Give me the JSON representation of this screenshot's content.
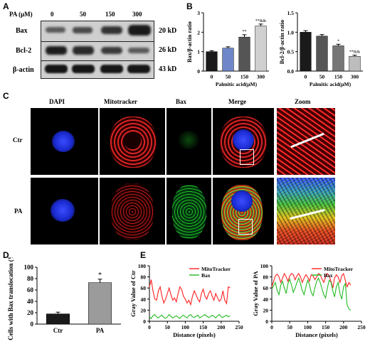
{
  "panel_letters": {
    "a": "A",
    "b": "B",
    "c": "C",
    "d": "D",
    "e": "E"
  },
  "panelA": {
    "header_label": "PA (μM)",
    "concentrations": [
      "0",
      "50",
      "150",
      "300"
    ],
    "rows": [
      {
        "name": "Bax",
        "size": "20 kD"
      },
      {
        "name": "Bcl-2",
        "size": "26 kD"
      },
      {
        "name": "β-actin",
        "size": "43 kD"
      }
    ]
  },
  "panelC": {
    "columns": [
      "DAPI",
      "Mitotracker",
      "Bax",
      "Merge",
      "Zoom"
    ],
    "rows": [
      "Ctr",
      "PA"
    ]
  },
  "chart_data": [
    {
      "id": "B-left",
      "type": "bar",
      "categories": [
        "0",
        "50",
        "150",
        "300"
      ],
      "values": [
        1.0,
        1.18,
        1.75,
        2.32
      ],
      "errors": [
        0.05,
        0.07,
        0.12,
        0.1
      ],
      "colors": [
        "#1a1a1a",
        "#6f87c8",
        "#555555",
        "#d0d0d0"
      ],
      "annotations": [
        "",
        "",
        "**",
        "**&&"
      ],
      "ylabel": "Bax/β-actin ratio",
      "xlabel": "Palmitic acid(μM)",
      "ylim": [
        0,
        3
      ],
      "yticks": [
        "0",
        "1",
        "2",
        "3"
      ]
    },
    {
      "id": "B-right",
      "type": "bar",
      "categories": [
        "0",
        "50",
        "150",
        "300"
      ],
      "values": [
        1.0,
        0.9,
        0.65,
        0.38
      ],
      "errors": [
        0.04,
        0.04,
        0.04,
        0.03
      ],
      "colors": [
        "#1a1a1a",
        "#555555",
        "#777777",
        "#bdbdbd"
      ],
      "annotations": [
        "",
        "",
        "*",
        "**&&"
      ],
      "ylabel": "Bcl-2/β-actin ratio",
      "xlabel": "Palmitic acid(μM)",
      "ylim": [
        0,
        1.5
      ],
      "yticks": [
        "0.0",
        "0.5",
        "1.0",
        "1.5"
      ]
    },
    {
      "id": "D",
      "type": "bar",
      "categories": [
        "Ctr",
        "PA"
      ],
      "values": [
        18,
        73
      ],
      "errors": [
        3,
        6
      ],
      "colors": [
        "#1a1a1a",
        "#9b9b9b"
      ],
      "annotations": [
        "",
        "*"
      ],
      "ylabel": "Cells with Bax translocation (%)",
      "xlabel": "",
      "ylim": [
        0,
        100
      ],
      "yticks": [
        "0",
        "20",
        "40",
        "60",
        "80",
        "100"
      ]
    },
    {
      "id": "E-left",
      "type": "line",
      "xlabel": "Distance (pixels)",
      "ylabel": "Gray Value of Ctr",
      "xlim": [
        0,
        250
      ],
      "ylim": [
        0,
        100
      ],
      "xticks": [
        "0",
        "50",
        "100",
        "150",
        "200",
        "250"
      ],
      "yticks": [
        "0",
        "20",
        "40",
        "60",
        "80",
        "100"
      ],
      "legend_position": "top-right",
      "series": [
        {
          "name": "MitoTracker",
          "color": "#ff2020",
          "x": [
            0,
            5,
            10,
            15,
            20,
            25,
            30,
            35,
            40,
            45,
            50,
            55,
            60,
            65,
            70,
            75,
            80,
            85,
            90,
            95,
            100,
            105,
            110,
            115,
            120,
            125,
            130,
            135,
            140,
            145,
            150,
            155,
            160,
            165,
            170,
            175,
            180,
            185,
            190,
            195,
            200,
            205,
            210,
            215,
            220,
            225
          ],
          "y": [
            62,
            75,
            55,
            40,
            38,
            55,
            62,
            45,
            33,
            40,
            50,
            60,
            48,
            38,
            42,
            35,
            50,
            62,
            57,
            45,
            40,
            33,
            38,
            30,
            45,
            55,
            48,
            40,
            35,
            50,
            58,
            45,
            40,
            50,
            55,
            45,
            38,
            50,
            42,
            36,
            40,
            55,
            38,
            32,
            62,
            60
          ]
        },
        {
          "name": "Bax",
          "color": "#22bb22",
          "x": [
            0,
            5,
            10,
            15,
            20,
            25,
            30,
            35,
            40,
            45,
            50,
            55,
            60,
            65,
            70,
            75,
            80,
            85,
            90,
            95,
            100,
            105,
            110,
            115,
            120,
            125,
            130,
            135,
            140,
            145,
            150,
            155,
            160,
            165,
            170,
            175,
            180,
            185,
            190,
            195,
            200,
            205,
            210,
            215,
            220,
            225
          ],
          "y": [
            8,
            5,
            10,
            12,
            8,
            6,
            9,
            11,
            7,
            5,
            8,
            12,
            9,
            6,
            8,
            10,
            7,
            5,
            9,
            11,
            8,
            6,
            10,
            12,
            8,
            7,
            9,
            11,
            6,
            8,
            10,
            12,
            9,
            7,
            8,
            11,
            9,
            6,
            10,
            12,
            8,
            7,
            9,
            11,
            8,
            10
          ]
        }
      ]
    },
    {
      "id": "E-right",
      "type": "line",
      "xlabel": "Distance (pixels)",
      "ylabel": "Gray Value of PA",
      "xlim": [
        0,
        250
      ],
      "ylim": [
        0,
        100
      ],
      "xticks": [
        "0",
        "50",
        "100",
        "150",
        "200",
        "250"
      ],
      "yticks": [
        "0",
        "20",
        "40",
        "60",
        "80",
        "100"
      ],
      "legend_position": "top-right",
      "series": [
        {
          "name": "MitoTracker",
          "color": "#ff2020",
          "x": [
            0,
            5,
            10,
            15,
            20,
            25,
            30,
            35,
            40,
            45,
            50,
            55,
            60,
            65,
            70,
            75,
            80,
            85,
            90,
            95,
            100,
            105,
            110,
            115,
            120,
            125,
            130,
            135,
            140,
            145,
            150,
            155,
            160,
            165,
            170,
            175,
            180,
            185,
            190,
            195,
            200,
            205,
            210,
            215,
            220
          ],
          "y": [
            62,
            72,
            82,
            85,
            80,
            70,
            78,
            86,
            80,
            72,
            82,
            86,
            84,
            75,
            82,
            86,
            80,
            70,
            78,
            84,
            80,
            72,
            84,
            82,
            75,
            80,
            86,
            84,
            76,
            70,
            80,
            86,
            82,
            72,
            60,
            78,
            84,
            80,
            70,
            82,
            86,
            74,
            62,
            70,
            65
          ]
        },
        {
          "name": "Bax",
          "color": "#22bb22",
          "x": [
            0,
            5,
            10,
            15,
            20,
            25,
            30,
            35,
            40,
            45,
            50,
            55,
            60,
            65,
            70,
            75,
            80,
            85,
            90,
            95,
            100,
            105,
            110,
            115,
            120,
            125,
            130,
            135,
            140,
            145,
            150,
            155,
            160,
            165,
            170,
            175,
            180,
            185,
            190,
            195,
            200,
            205,
            210,
            215,
            220
          ],
          "y": [
            58,
            64,
            70,
            55,
            48,
            65,
            72,
            60,
            50,
            68,
            76,
            65,
            52,
            60,
            70,
            78,
            68,
            55,
            48,
            62,
            74,
            66,
            52,
            46,
            60,
            72,
            78,
            70,
            58,
            48,
            42,
            60,
            74,
            70,
            55,
            44,
            62,
            70,
            50,
            40,
            62,
            68,
            30,
            22,
            20
          ]
        }
      ]
    }
  ]
}
